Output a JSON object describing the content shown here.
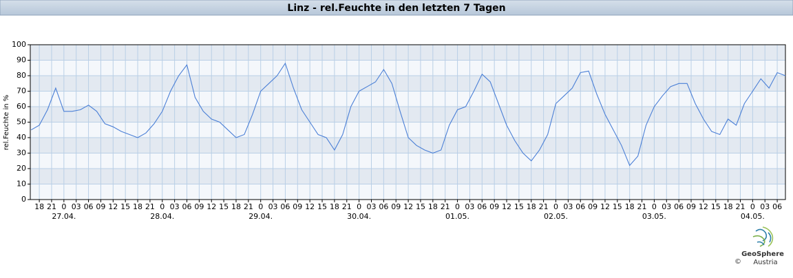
{
  "chart_data": {
    "type": "line",
    "title": "Linz - rel.Feuchte in den letzten 7 Tagen",
    "y_label": "rel.Feuchte in %",
    "xlim": [
      -8.2,
      176
    ],
    "ylim": [
      0,
      100
    ],
    "yticks": [
      0,
      10,
      20,
      30,
      40,
      50,
      60,
      70,
      80,
      90,
      100
    ],
    "grid": true,
    "xticks": [
      {
        "value": -6,
        "label": "18"
      },
      {
        "value": -3,
        "label": "21"
      },
      {
        "value": 0,
        "label": "0"
      },
      {
        "value": 3,
        "label": "03"
      },
      {
        "value": 6,
        "label": "06"
      },
      {
        "value": 9,
        "label": "09"
      },
      {
        "value": 12,
        "label": "12"
      },
      {
        "value": 15,
        "label": "15"
      },
      {
        "value": 18,
        "label": "18"
      },
      {
        "value": 21,
        "label": "21"
      },
      {
        "value": 24,
        "label": "0"
      },
      {
        "value": 27,
        "label": "03"
      },
      {
        "value": 30,
        "label": "06"
      },
      {
        "value": 33,
        "label": "09"
      },
      {
        "value": 36,
        "label": "12"
      },
      {
        "value": 39,
        "label": "15"
      },
      {
        "value": 42,
        "label": "18"
      },
      {
        "value": 45,
        "label": "21"
      },
      {
        "value": 48,
        "label": "0"
      },
      {
        "value": 51,
        "label": "03"
      },
      {
        "value": 54,
        "label": "06"
      },
      {
        "value": 57,
        "label": "09"
      },
      {
        "value": 60,
        "label": "12"
      },
      {
        "value": 63,
        "label": "15"
      },
      {
        "value": 66,
        "label": "18"
      },
      {
        "value": 69,
        "label": "21"
      },
      {
        "value": 72,
        "label": "0"
      },
      {
        "value": 75,
        "label": "03"
      },
      {
        "value": 78,
        "label": "06"
      },
      {
        "value": 81,
        "label": "09"
      },
      {
        "value": 84,
        "label": "12"
      },
      {
        "value": 87,
        "label": "15"
      },
      {
        "value": 90,
        "label": "18"
      },
      {
        "value": 93,
        "label": "21"
      },
      {
        "value": 96,
        "label": "0"
      },
      {
        "value": 99,
        "label": "03"
      },
      {
        "value": 102,
        "label": "06"
      },
      {
        "value": 105,
        "label": "09"
      },
      {
        "value": 108,
        "label": "12"
      },
      {
        "value": 111,
        "label": "15"
      },
      {
        "value": 114,
        "label": "18"
      },
      {
        "value": 117,
        "label": "21"
      },
      {
        "value": 120,
        "label": "0"
      },
      {
        "value": 123,
        "label": "03"
      },
      {
        "value": 126,
        "label": "06"
      },
      {
        "value": 129,
        "label": "09"
      },
      {
        "value": 132,
        "label": "12"
      },
      {
        "value": 135,
        "label": "15"
      },
      {
        "value": 138,
        "label": "18"
      },
      {
        "value": 141,
        "label": "21"
      },
      {
        "value": 144,
        "label": "0"
      },
      {
        "value": 147,
        "label": "03"
      },
      {
        "value": 150,
        "label": "06"
      },
      {
        "value": 153,
        "label": "09"
      },
      {
        "value": 156,
        "label": "12"
      },
      {
        "value": 159,
        "label": "15"
      },
      {
        "value": 162,
        "label": "18"
      },
      {
        "value": 165,
        "label": "21"
      },
      {
        "value": 168,
        "label": "0"
      },
      {
        "value": 171,
        "label": "03"
      },
      {
        "value": 174,
        "label": "06"
      }
    ],
    "date_ticks": [
      {
        "value": 0,
        "label": "27.04."
      },
      {
        "value": 24,
        "label": "28.04."
      },
      {
        "value": 48,
        "label": "29.04."
      },
      {
        "value": 72,
        "label": "30.04."
      },
      {
        "value": 96,
        "label": "01.05."
      },
      {
        "value": 120,
        "label": "02.05."
      },
      {
        "value": 144,
        "label": "03.05."
      },
      {
        "value": 168,
        "label": "04.05."
      }
    ],
    "x": [
      -8,
      -6,
      -4,
      -2,
      0,
      2,
      4,
      6,
      8,
      10,
      12,
      14,
      16,
      18,
      20,
      22,
      24,
      26,
      28,
      30,
      32,
      34,
      36,
      38,
      40,
      42,
      44,
      46,
      48,
      50,
      52,
      54,
      56,
      58,
      60,
      62,
      64,
      66,
      68,
      70,
      72,
      74,
      76,
      78,
      80,
      82,
      84,
      86,
      88,
      90,
      92,
      94,
      96,
      98,
      100,
      102,
      104,
      106,
      108,
      110,
      112,
      114,
      116,
      118,
      120,
      122,
      124,
      126,
      128,
      130,
      132,
      134,
      136,
      138,
      140,
      142,
      144,
      146,
      148,
      150,
      152,
      154,
      156,
      158,
      160,
      162,
      164,
      166,
      168,
      170,
      172,
      174,
      176
    ],
    "series": [
      {
        "color": "#4a7fd6",
        "values": [
          45,
          48,
          58,
          72,
          57,
          57,
          58,
          61,
          57,
          49,
          47,
          44,
          42,
          40,
          43,
          49,
          57,
          70,
          80,
          87,
          66,
          57,
          52,
          50,
          45,
          40,
          42,
          55,
          70,
          75,
          80,
          88,
          72,
          58,
          50,
          42,
          40,
          32,
          42,
          60,
          70,
          73,
          76,
          84,
          75,
          57,
          40,
          35,
          32,
          30,
          32,
          48,
          58,
          60,
          70,
          81,
          76,
          62,
          48,
          38,
          30,
          25,
          32,
          42,
          62,
          67,
          72,
          82,
          83,
          68,
          55,
          45,
          35,
          22,
          28,
          48,
          60,
          67,
          73,
          75,
          75,
          62,
          52,
          44,
          42,
          52,
          48,
          62,
          70,
          78,
          72,
          82,
          80
        ]
      }
    ],
    "logo": {
      "name": "GeoSphere",
      "sub": "Austria",
      "copyright": "©"
    }
  }
}
